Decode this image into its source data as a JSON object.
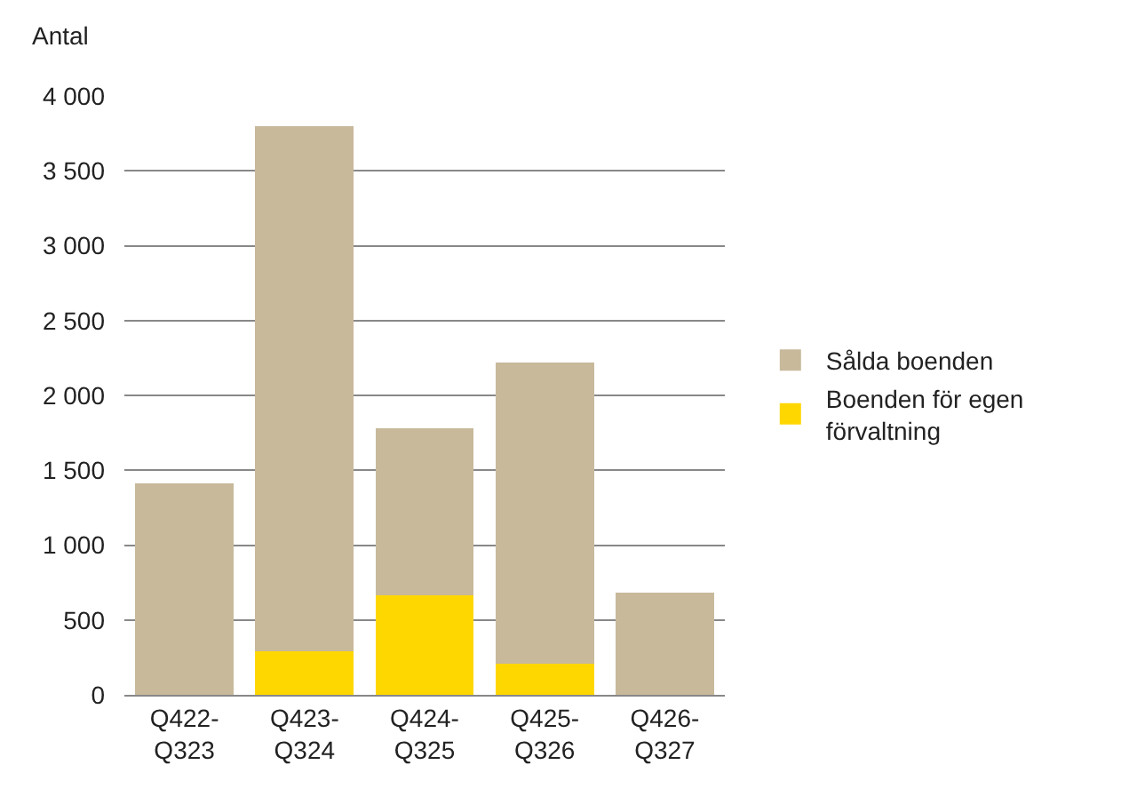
{
  "chart_data": {
    "type": "bar",
    "stacked": true,
    "ylabel": "Antal",
    "categories": [
      "Q422-Q323",
      "Q423-Q324",
      "Q424-Q325",
      "Q425-Q326",
      "Q426-Q327"
    ],
    "series": [
      {
        "name": "Boenden för egen förvaltning",
        "color": "#ffd700",
        "values": [
          0,
          290,
          665,
          210,
          0
        ]
      },
      {
        "name": "Sålda boenden",
        "color": "#c8b99b",
        "values": [
          1410,
          3510,
          1115,
          2010,
          680
        ]
      }
    ],
    "ylim": [
      0,
      4000
    ],
    "yticks": [
      0,
      {
        "value": 500,
        "label": "500"
      },
      {
        "value": 1000,
        "label": "1 000"
      },
      {
        "value": 1500,
        "label": "1 500"
      },
      {
        "value": 2000,
        "label": "2 000"
      },
      {
        "value": 2500,
        "label": "2 500"
      },
      {
        "value": 3000,
        "label": "3 000"
      },
      {
        "value": 3500,
        "label": "3 500"
      },
      {
        "value": 4000,
        "label": "4 000"
      }
    ],
    "grid": "y",
    "legend": "right"
  }
}
